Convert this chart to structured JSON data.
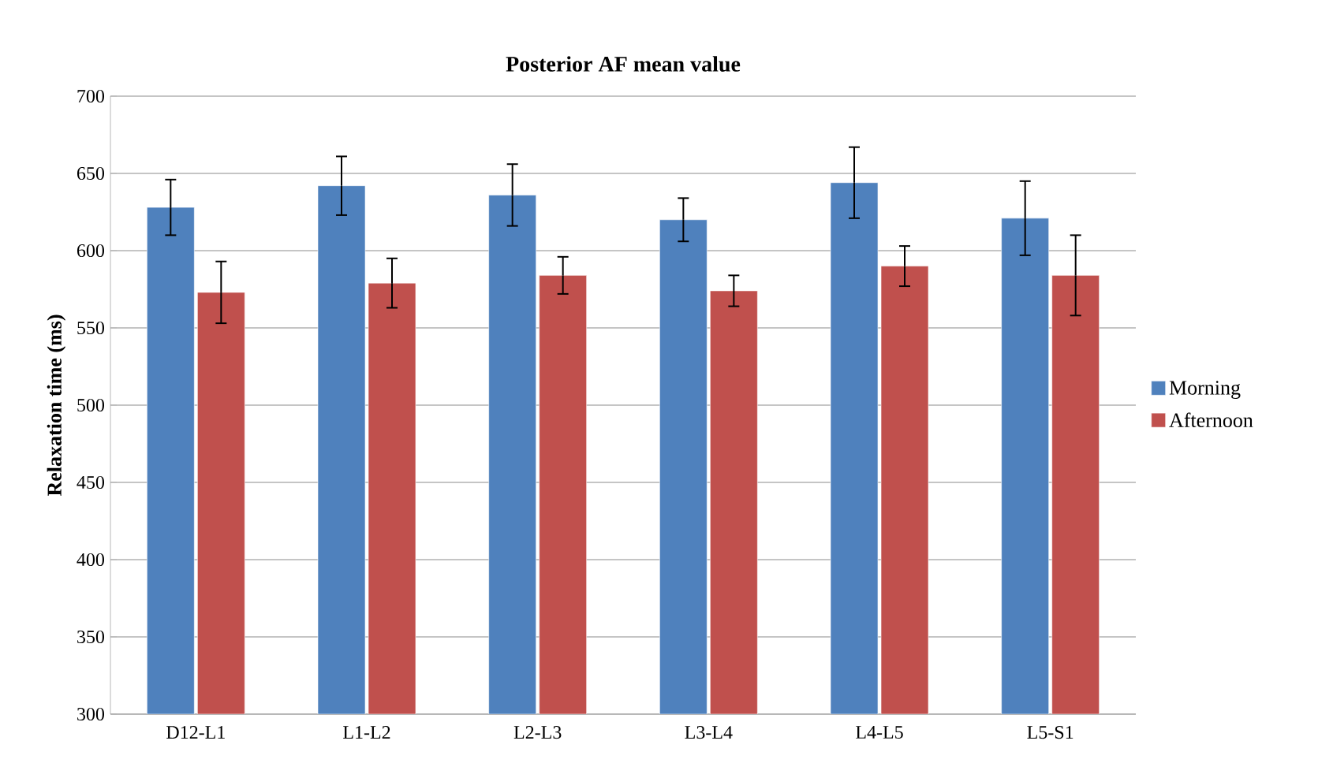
{
  "chart_data": {
    "type": "bar",
    "title": "Posterior AF mean value",
    "ylabel": "Relaxation time (ms)",
    "categories": [
      "D12-L1",
      "L1-L2",
      "L2-L3",
      "L3-L4",
      "L4-L5",
      "L5-S1"
    ],
    "series": [
      {
        "name": "Morning",
        "color": "#4f81bd",
        "values": [
          628,
          642,
          636,
          620,
          644,
          621
        ],
        "errors": [
          18,
          19,
          20,
          14,
          23,
          24
        ]
      },
      {
        "name": "Afternoon",
        "color": "#c0504d",
        "values": [
          573,
          579,
          584,
          574,
          590,
          584
        ],
        "errors": [
          20,
          16,
          12,
          10,
          13,
          26
        ]
      }
    ],
    "ylim": [
      300,
      700
    ],
    "yticks": [
      300,
      350,
      400,
      450,
      500,
      550,
      600,
      650,
      700
    ],
    "grid": "y",
    "legend": "right"
  }
}
